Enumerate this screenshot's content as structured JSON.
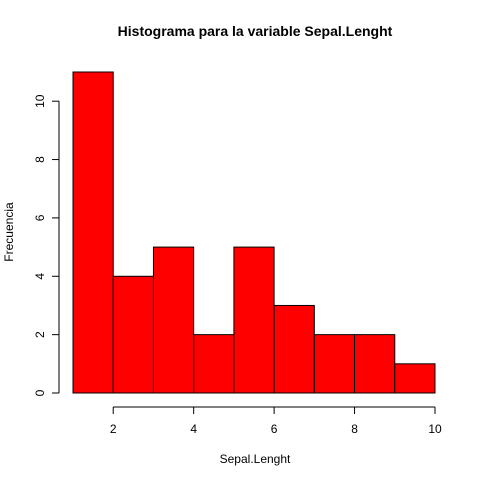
{
  "chart_data": {
    "type": "bar",
    "title": "Histograma para la variable Sepal.Lenght",
    "xlabel": "Sepal.Lenght",
    "ylabel": "Frecuencia",
    "bins": [
      {
        "start": 1,
        "end": 2,
        "count": 11
      },
      {
        "start": 2,
        "end": 3,
        "count": 4
      },
      {
        "start": 3,
        "end": 4,
        "count": 5
      },
      {
        "start": 4,
        "end": 5,
        "count": 2
      },
      {
        "start": 5,
        "end": 6,
        "count": 5
      },
      {
        "start": 6,
        "end": 7,
        "count": 3
      },
      {
        "start": 7,
        "end": 8,
        "count": 2
      },
      {
        "start": 8,
        "end": 9,
        "count": 2
      },
      {
        "start": 9,
        "end": 10,
        "count": 1
      }
    ],
    "xlim": [
      1,
      10
    ],
    "ylim": [
      0,
      11
    ],
    "xticks": [
      2,
      4,
      6,
      8,
      10
    ],
    "yticks": [
      0,
      2,
      4,
      6,
      8,
      10
    ],
    "bar_color": "#ff0000",
    "grid": false
  }
}
